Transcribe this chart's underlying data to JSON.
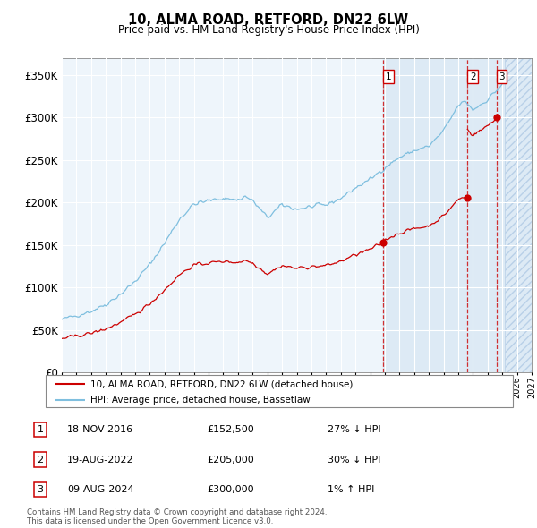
{
  "title": "10, ALMA ROAD, RETFORD, DN22 6LW",
  "subtitle": "Price paid vs. HM Land Registry's House Price Index (HPI)",
  "ylim": [
    0,
    370000
  ],
  "yticks": [
    0,
    50000,
    100000,
    150000,
    200000,
    250000,
    300000,
    350000
  ],
  "ytick_labels": [
    "£0",
    "£50K",
    "£100K",
    "£150K",
    "£200K",
    "£250K",
    "£300K",
    "£350K"
  ],
  "xlim_start": 1995.0,
  "xlim_end": 2027.0,
  "hpi_color": "#7fbfdf",
  "price_color": "#cc0000",
  "sale_color": "#cc0000",
  "vline_color": "#cc0000",
  "bg_chart": "#eef5fb",
  "bg_sale_zone": "#ddeaf5",
  "bg_future": "#ddeaf5",
  "grid_color": "#ffffff",
  "legend_entries": [
    "10, ALMA ROAD, RETFORD, DN22 6LW (detached house)",
    "HPI: Average price, detached house, Bassetlaw"
  ],
  "sale_points": [
    {
      "date_year": 2016.88,
      "price": 152500,
      "label": "1"
    },
    {
      "date_year": 2022.63,
      "price": 205000,
      "label": "2"
    },
    {
      "date_year": 2024.61,
      "price": 300000,
      "label": "3"
    }
  ],
  "table_rows": [
    {
      "num": "1",
      "date": "18-NOV-2016",
      "price": "£152,500",
      "hpi": "27% ↓ HPI"
    },
    {
      "num": "2",
      "date": "19-AUG-2022",
      "price": "£205,000",
      "hpi": "30% ↓ HPI"
    },
    {
      "num": "3",
      "date": "09-AUG-2024",
      "price": "£300,000",
      "hpi": "1% ↑ HPI"
    }
  ],
  "footer": "Contains HM Land Registry data © Crown copyright and database right 2024.\nThis data is licensed under the Open Government Licence v3.0.",
  "future_start": 2025.17
}
